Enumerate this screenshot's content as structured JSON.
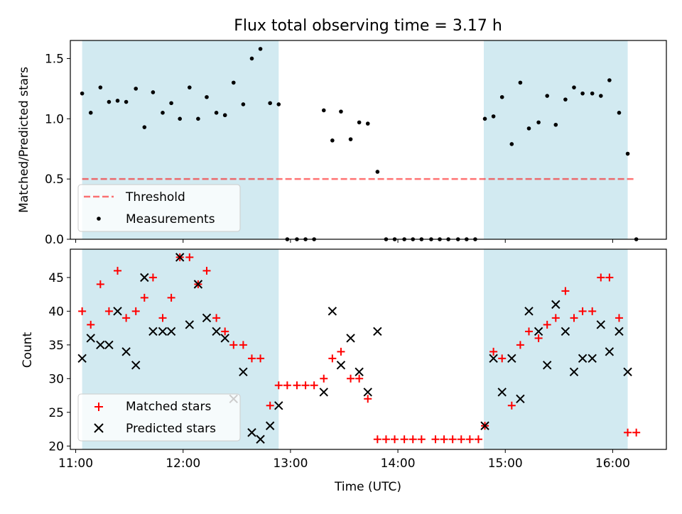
{
  "title": "Flux total observing time = 3.17 h",
  "colors": {
    "band": "#add8e6",
    "threshold": "#ff0000",
    "measurement": "#000000",
    "matched": "#ff0000",
    "predicted": "#000000"
  },
  "chart_data": [
    {
      "type": "scatter",
      "panel": "top",
      "ylabel": "Matched/Predicted stars",
      "xlim": [
        10.95,
        16.5
      ],
      "ylim": [
        0,
        1.65
      ],
      "yticks": [
        0.0,
        0.5,
        1.0,
        1.5
      ],
      "ytick_labels": [
        "0.0",
        "0.5",
        "1.0",
        "1.5"
      ],
      "shaded_regions": [
        [
          11.06,
          12.89
        ],
        [
          14.8,
          16.14
        ]
      ],
      "threshold": {
        "label": "Threshold",
        "value": 0.5,
        "x_range": [
          11.06,
          16.2
        ]
      },
      "legend": {
        "placement": "lower-left",
        "entries": [
          "Threshold",
          "Measurements"
        ]
      },
      "series": [
        {
          "name": "Measurements",
          "points": [
            [
              11.06,
              1.21
            ],
            [
              11.14,
              1.05
            ],
            [
              11.23,
              1.26
            ],
            [
              11.31,
              1.14
            ],
            [
              11.39,
              1.15
            ],
            [
              11.47,
              1.14
            ],
            [
              11.56,
              1.25
            ],
            [
              11.64,
              0.93
            ],
            [
              11.72,
              1.22
            ],
            [
              11.81,
              1.05
            ],
            [
              11.89,
              1.13
            ],
            [
              11.97,
              1.0
            ],
            [
              12.06,
              1.26
            ],
            [
              12.14,
              1.0
            ],
            [
              12.22,
              1.18
            ],
            [
              12.31,
              1.05
            ],
            [
              12.39,
              1.03
            ],
            [
              12.47,
              1.3
            ],
            [
              12.56,
              1.12
            ],
            [
              12.64,
              1.5
            ],
            [
              12.72,
              1.58
            ],
            [
              12.81,
              1.13
            ],
            [
              12.89,
              1.12
            ],
            [
              12.97,
              0.0
            ],
            [
              13.06,
              0.0
            ],
            [
              13.14,
              0.0
            ],
            [
              13.22,
              0.0
            ],
            [
              13.31,
              1.07
            ],
            [
              13.39,
              0.82
            ],
            [
              13.47,
              1.06
            ],
            [
              13.56,
              0.83
            ],
            [
              13.64,
              0.97
            ],
            [
              13.72,
              0.96
            ],
            [
              13.81,
              0.56
            ],
            [
              13.89,
              0.0
            ],
            [
              13.97,
              0.0
            ],
            [
              14.06,
              0.0
            ],
            [
              14.14,
              0.0
            ],
            [
              14.22,
              0.0
            ],
            [
              14.31,
              0.0
            ],
            [
              14.39,
              0.0
            ],
            [
              14.47,
              0.0
            ],
            [
              14.56,
              0.0
            ],
            [
              14.64,
              0.0
            ],
            [
              14.72,
              0.0
            ],
            [
              14.81,
              1.0
            ],
            [
              14.89,
              1.02
            ],
            [
              14.97,
              1.18
            ],
            [
              15.06,
              0.79
            ],
            [
              15.14,
              1.3
            ],
            [
              15.22,
              0.92
            ],
            [
              15.31,
              0.97
            ],
            [
              15.39,
              1.19
            ],
            [
              15.47,
              0.95
            ],
            [
              15.56,
              1.16
            ],
            [
              15.64,
              1.26
            ],
            [
              15.72,
              1.21
            ],
            [
              15.81,
              1.21
            ],
            [
              15.89,
              1.19
            ],
            [
              15.97,
              1.32
            ],
            [
              16.06,
              1.05
            ],
            [
              16.14,
              0.71
            ],
            [
              16.22,
              0.0
            ]
          ]
        }
      ]
    },
    {
      "type": "scatter",
      "panel": "bottom",
      "xlabel": "Time (UTC)",
      "ylabel": "Count",
      "xlim": [
        10.95,
        16.5
      ],
      "ylim": [
        19.5,
        49.2
      ],
      "xticks": [
        11,
        12,
        13,
        14,
        15,
        16
      ],
      "xtick_labels": [
        "11:00",
        "12:00",
        "13:00",
        "14:00",
        "15:00",
        "16:00"
      ],
      "yticks": [
        20,
        25,
        30,
        35,
        40,
        45
      ],
      "ytick_labels": [
        "20",
        "25",
        "30",
        "35",
        "40",
        "45"
      ],
      "shaded_regions": [
        [
          11.06,
          12.89
        ],
        [
          14.8,
          16.14
        ]
      ],
      "legend": {
        "placement": "lower-left",
        "entries": [
          "Matched stars",
          "Predicted stars"
        ]
      },
      "series": [
        {
          "name": "Matched stars",
          "marker": "plus",
          "points": [
            [
              11.06,
              40
            ],
            [
              11.14,
              38
            ],
            [
              11.23,
              44
            ],
            [
              11.31,
              40
            ],
            [
              11.39,
              46
            ],
            [
              11.47,
              39
            ],
            [
              11.56,
              40
            ],
            [
              11.64,
              42
            ],
            [
              11.72,
              45
            ],
            [
              11.81,
              39
            ],
            [
              11.89,
              42
            ],
            [
              11.97,
              48
            ],
            [
              12.06,
              48
            ],
            [
              12.14,
              44
            ],
            [
              12.22,
              46
            ],
            [
              12.31,
              39
            ],
            [
              12.39,
              37
            ],
            [
              12.47,
              35
            ],
            [
              12.56,
              35
            ],
            [
              12.64,
              33
            ],
            [
              12.72,
              33
            ],
            [
              12.81,
              26
            ],
            [
              12.89,
              29
            ],
            [
              12.97,
              29
            ],
            [
              13.06,
              29
            ],
            [
              13.14,
              29
            ],
            [
              13.22,
              29
            ],
            [
              13.31,
              30
            ],
            [
              13.39,
              33
            ],
            [
              13.47,
              34
            ],
            [
              13.56,
              30
            ],
            [
              13.64,
              30
            ],
            [
              13.72,
              27
            ],
            [
              13.81,
              21
            ],
            [
              13.89,
              21
            ],
            [
              13.97,
              21
            ],
            [
              14.06,
              21
            ],
            [
              14.14,
              21
            ],
            [
              14.22,
              21
            ],
            [
              14.35,
              21
            ],
            [
              14.43,
              21
            ],
            [
              14.51,
              21
            ],
            [
              14.59,
              21
            ],
            [
              14.67,
              21
            ],
            [
              14.75,
              21
            ],
            [
              14.81,
              23
            ],
            [
              14.89,
              34
            ],
            [
              14.97,
              33
            ],
            [
              15.06,
              26
            ],
            [
              15.14,
              35
            ],
            [
              15.22,
              37
            ],
            [
              15.31,
              36
            ],
            [
              15.39,
              38
            ],
            [
              15.47,
              39
            ],
            [
              15.56,
              43
            ],
            [
              15.64,
              39
            ],
            [
              15.72,
              40
            ],
            [
              15.81,
              40
            ],
            [
              15.89,
              45
            ],
            [
              15.97,
              45
            ],
            [
              16.06,
              39
            ],
            [
              16.14,
              22
            ],
            [
              16.22,
              22
            ]
          ]
        },
        {
          "name": "Predicted stars",
          "marker": "x",
          "points": [
            [
              11.06,
              33
            ],
            [
              11.14,
              36
            ],
            [
              11.23,
              35
            ],
            [
              11.31,
              35
            ],
            [
              11.39,
              40
            ],
            [
              11.47,
              34
            ],
            [
              11.56,
              32
            ],
            [
              11.64,
              45
            ],
            [
              11.72,
              37
            ],
            [
              11.81,
              37
            ],
            [
              11.89,
              37
            ],
            [
              11.97,
              48
            ],
            [
              12.06,
              38
            ],
            [
              12.14,
              44
            ],
            [
              12.22,
              39
            ],
            [
              12.31,
              37
            ],
            [
              12.39,
              36
            ],
            [
              12.47,
              27
            ],
            [
              12.56,
              31
            ],
            [
              12.64,
              22
            ],
            [
              12.72,
              21
            ],
            [
              12.81,
              23
            ],
            [
              12.89,
              26
            ],
            [
              13.31,
              28
            ],
            [
              13.39,
              40
            ],
            [
              13.47,
              32
            ],
            [
              13.56,
              36
            ],
            [
              13.64,
              31
            ],
            [
              13.72,
              28
            ],
            [
              13.81,
              37
            ],
            [
              14.81,
              23
            ],
            [
              14.89,
              33
            ],
            [
              14.97,
              28
            ],
            [
              15.06,
              33
            ],
            [
              15.14,
              27
            ],
            [
              15.22,
              40
            ],
            [
              15.31,
              37
            ],
            [
              15.39,
              32
            ],
            [
              15.47,
              41
            ],
            [
              15.56,
              37
            ],
            [
              15.64,
              31
            ],
            [
              15.72,
              33
            ],
            [
              15.81,
              33
            ],
            [
              15.89,
              38
            ],
            [
              15.97,
              34
            ],
            [
              16.06,
              37
            ],
            [
              16.14,
              31
            ]
          ]
        }
      ]
    }
  ]
}
